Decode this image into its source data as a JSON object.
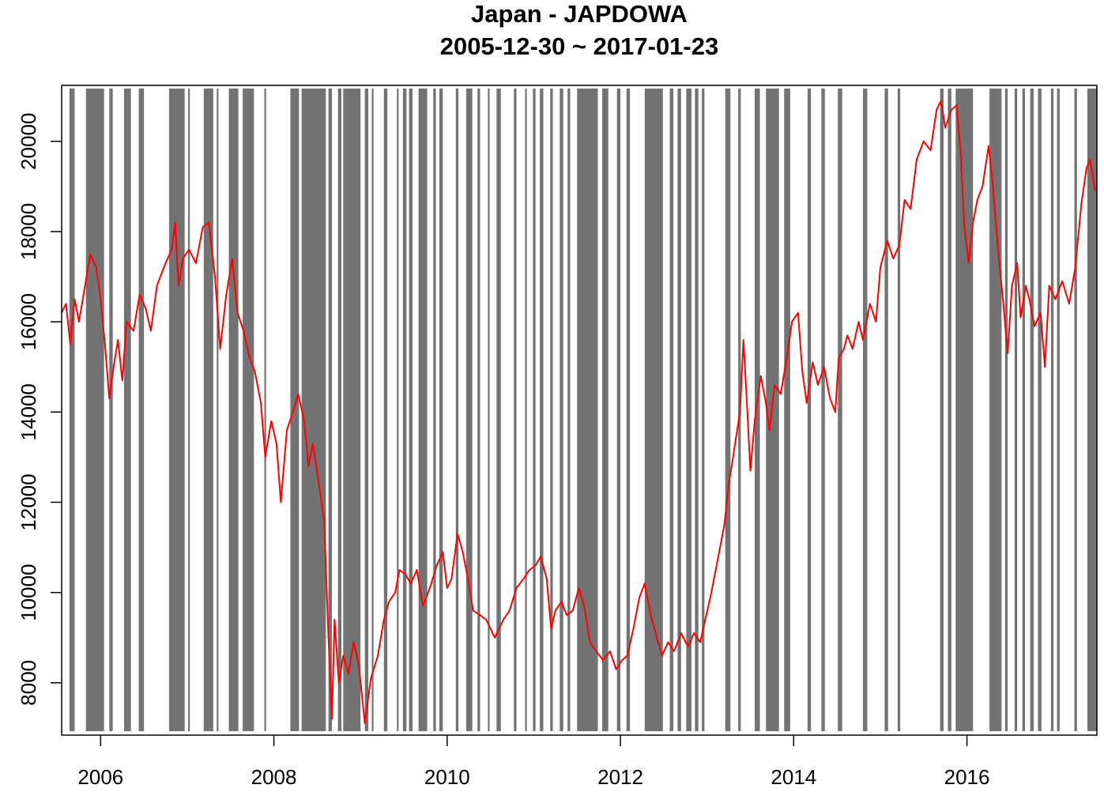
{
  "chart_data": {
    "type": "line",
    "title": "Japan - JAPDOWA",
    "subtitle": "2005-12-30 ~ 2017-01-23",
    "color": "#ff0000",
    "region_color": "#737373",
    "xlim": [
      2005.55,
      2017.5
    ],
    "ylim": [
      6840,
      21240
    ],
    "xticks": [
      2006,
      2008,
      2010,
      2012,
      2014,
      2016
    ],
    "yticks": [
      8000,
      10000,
      12000,
      14000,
      16000,
      18000,
      20000
    ],
    "regions": [
      [
        2005.64,
        2005.7
      ],
      [
        2005.83,
        2006.04
      ],
      [
        2006.1,
        2006.14
      ],
      [
        2006.27,
        2006.35
      ],
      [
        2006.44,
        2006.5
      ],
      [
        2006.79,
        2006.97
      ],
      [
        2007.01,
        2007.03
      ],
      [
        2007.19,
        2007.3
      ],
      [
        2007.34,
        2007.36
      ],
      [
        2007.48,
        2007.59
      ],
      [
        2007.64,
        2007.77
      ],
      [
        2007.89,
        2007.91
      ],
      [
        2008.19,
        2008.29
      ],
      [
        2008.32,
        2008.6
      ],
      [
        2008.63,
        2008.67
      ],
      [
        2008.74,
        2008.78
      ],
      [
        2008.8,
        2009.0
      ],
      [
        2009.05,
        2009.09
      ],
      [
        2009.13,
        2009.15
      ],
      [
        2009.27,
        2009.31
      ],
      [
        2009.42,
        2009.44
      ],
      [
        2009.49,
        2009.53
      ],
      [
        2009.56,
        2009.6
      ],
      [
        2009.67,
        2009.77
      ],
      [
        2009.84,
        2009.87
      ],
      [
        2009.91,
        2009.95
      ],
      [
        2010.1,
        2010.13
      ],
      [
        2010.22,
        2010.29
      ],
      [
        2010.35,
        2010.38
      ],
      [
        2010.47,
        2010.49
      ],
      [
        2010.57,
        2010.62
      ],
      [
        2010.77,
        2010.8
      ],
      [
        2010.9,
        2010.92
      ],
      [
        2010.99,
        2011.02
      ],
      [
        2011.07,
        2011.11
      ],
      [
        2011.19,
        2011.22
      ],
      [
        2011.3,
        2011.34
      ],
      [
        2011.39,
        2011.42
      ],
      [
        2011.5,
        2011.74
      ],
      [
        2011.79,
        2011.86
      ],
      [
        2011.96,
        2012.0
      ],
      [
        2012.07,
        2012.11
      ],
      [
        2012.28,
        2012.49
      ],
      [
        2012.57,
        2012.61
      ],
      [
        2012.66,
        2012.7
      ],
      [
        2012.76,
        2012.82
      ],
      [
        2012.86,
        2012.9
      ],
      [
        2012.94,
        2012.97
      ],
      [
        2013.21,
        2013.27
      ],
      [
        2013.36,
        2013.39
      ],
      [
        2013.55,
        2013.61
      ],
      [
        2013.68,
        2013.83
      ],
      [
        2013.89,
        2013.96
      ],
      [
        2014.16,
        2014.2
      ],
      [
        2014.32,
        2014.36
      ],
      [
        2014.51,
        2014.56
      ],
      [
        2014.8,
        2014.85
      ],
      [
        2015.05,
        2015.09
      ],
      [
        2015.2,
        2015.23
      ],
      [
        2015.69,
        2015.73
      ],
      [
        2015.78,
        2015.82
      ],
      [
        2015.87,
        2016.07
      ],
      [
        2016.26,
        2016.4
      ],
      [
        2016.44,
        2016.47
      ],
      [
        2016.55,
        2016.58
      ],
      [
        2016.64,
        2016.67
      ],
      [
        2016.73,
        2016.77
      ],
      [
        2016.82,
        2016.86
      ],
      [
        2016.97,
        2017.0
      ],
      [
        2017.04,
        2017.07
      ],
      [
        2017.24,
        2017.27
      ],
      [
        2017.39,
        2017.5
      ]
    ],
    "x": [
      2005.55,
      2005.6,
      2005.65,
      2005.7,
      2005.75,
      2005.82,
      2005.88,
      2005.95,
      2006.0,
      2006.05,
      2006.1,
      2006.15,
      2006.2,
      2006.25,
      2006.3,
      2006.38,
      2006.45,
      2006.52,
      2006.58,
      2006.65,
      2006.75,
      2006.82,
      2006.86,
      2006.9,
      2006.95,
      2007.02,
      2007.1,
      2007.18,
      2007.25,
      2007.32,
      2007.38,
      2007.45,
      2007.52,
      2007.58,
      2007.65,
      2007.72,
      2007.78,
      2007.85,
      2007.9,
      2007.97,
      2008.03,
      2008.08,
      2008.15,
      2008.22,
      2008.28,
      2008.35,
      2008.4,
      2008.45,
      2008.52,
      2008.58,
      2008.63,
      2008.67,
      2008.7,
      2008.75,
      2008.8,
      2008.86,
      2008.92,
      2008.98,
      2009.05,
      2009.12,
      2009.2,
      2009.27,
      2009.33,
      2009.4,
      2009.45,
      2009.52,
      2009.58,
      2009.65,
      2009.72,
      2009.8,
      2009.88,
      2009.95,
      2010.0,
      2010.05,
      2010.12,
      2010.18,
      2010.25,
      2010.3,
      2010.38,
      2010.45,
      2010.55,
      2010.65,
      2010.72,
      2010.8,
      2010.88,
      2010.95,
      2011.02,
      2011.08,
      2011.15,
      2011.2,
      2011.25,
      2011.32,
      2011.38,
      2011.45,
      2011.52,
      2011.58,
      2011.65,
      2011.72,
      2011.8,
      2011.88,
      2011.95,
      2012.02,
      2012.08,
      2012.15,
      2012.22,
      2012.28,
      2012.35,
      2012.42,
      2012.48,
      2012.55,
      2012.62,
      2012.7,
      2012.78,
      2012.85,
      2012.92,
      2012.98,
      2013.05,
      2013.12,
      2013.2,
      2013.25,
      2013.3,
      2013.38,
      2013.42,
      2013.46,
      2013.5,
      2013.55,
      2013.62,
      2013.68,
      2013.72,
      2013.78,
      2013.85,
      2013.92,
      2013.98,
      2014.05,
      2014.1,
      2014.15,
      2014.22,
      2014.28,
      2014.35,
      2014.42,
      2014.48,
      2014.52,
      2014.58,
      2014.62,
      2014.68,
      2014.75,
      2014.8,
      2014.88,
      2014.95,
      2015.0,
      2015.08,
      2015.15,
      2015.22,
      2015.28,
      2015.35,
      2015.42,
      2015.5,
      2015.58,
      2015.65,
      2015.7,
      2015.75,
      2015.82,
      2015.88,
      2015.93,
      2015.97,
      2016.02,
      2016.07,
      2016.12,
      2016.18,
      2016.25,
      2016.3,
      2016.35,
      2016.42,
      2016.47,
      2016.52,
      2016.58,
      2016.62,
      2016.68,
      2016.72,
      2016.78,
      2016.85,
      2016.9,
      2016.95,
      2017.02,
      2017.1,
      2017.18,
      2017.25,
      2017.32,
      2017.38,
      2017.42,
      2017.48
    ],
    "values": [
      16200,
      16400,
      15500,
      16500,
      16000,
      16800,
      17500,
      17200,
      16500,
      15500,
      14300,
      15000,
      15600,
      14700,
      16000,
      15800,
      16600,
      16300,
      15800,
      16800,
      17300,
      17600,
      18200,
      16800,
      17400,
      17600,
      17300,
      18100,
      18200,
      17000,
      15400,
      16600,
      17400,
      16200,
      15800,
      15200,
      14900,
      14200,
      13000,
      13800,
      13300,
      12000,
      13600,
      14000,
      14400,
      13800,
      12800,
      13300,
      12400,
      11600,
      9000,
      7200,
      9400,
      8000,
      8600,
      8200,
      8900,
      8400,
      7100,
      8100,
      8600,
      9400,
      9800,
      10000,
      10500,
      10400,
      10200,
      10500,
      9700,
      10100,
      10600,
      10900,
      10100,
      10300,
      11300,
      10900,
      10200,
      9600,
      9500,
      9400,
      9000,
      9400,
      9600,
      10100,
      10300,
      10500,
      10600,
      10800,
      10300,
      9200,
      9600,
      9800,
      9500,
      9600,
      10100,
      9700,
      8900,
      8700,
      8500,
      8700,
      8300,
      8500,
      8600,
      9200,
      9900,
      10200,
      9500,
      9000,
      8600,
      8900,
      8700,
      9100,
      8800,
      9100,
      8900,
      9400,
      10000,
      10700,
      11500,
      12400,
      13000,
      14000,
      15600,
      14200,
      12700,
      13800,
      14800,
      14200,
      13600,
      14600,
      14400,
      15200,
      16000,
      16200,
      14900,
      14200,
      15100,
      14600,
      15000,
      14300,
      14000,
      15200,
      15400,
      15700,
      15400,
      16000,
      15600,
      16400,
      16000,
      17200,
      17800,
      17400,
      17700,
      18700,
      18500,
      19600,
      20000,
      19800,
      20700,
      20900,
      20300,
      20700,
      20800,
      19700,
      18100,
      17300,
      18200,
      18700,
      19000,
      19900,
      19000,
      17800,
      16400,
      15300,
      16800,
      17300,
      16100,
      16800,
      16500,
      15900,
      16200,
      15000,
      16800,
      16500,
      16900,
      16400,
      17200,
      18600,
      19400,
      19600,
      18900
    ]
  }
}
